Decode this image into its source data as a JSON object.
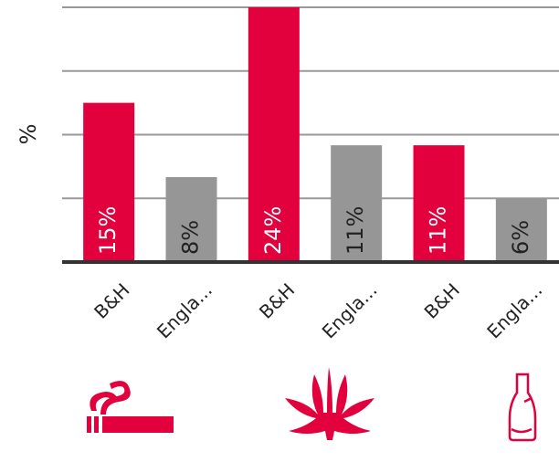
{
  "chart_data": {
    "type": "bar",
    "y_label": "%",
    "categories": [
      "B&H",
      "Engla...",
      "B&H",
      "Engla...",
      "B&H",
      "Engla..."
    ],
    "values": [
      15,
      8,
      24,
      11,
      11,
      6
    ],
    "value_labels": [
      "15%",
      "8%",
      "24%",
      "11%",
      "11%",
      "6%"
    ],
    "colors": [
      "#e2003d",
      "#969696",
      "#e2003d",
      "#969696",
      "#e2003d",
      "#969696"
    ],
    "ylim": [
      0,
      24
    ],
    "yticks": [
      0,
      6,
      12,
      18,
      24
    ],
    "grid": true
  }
}
